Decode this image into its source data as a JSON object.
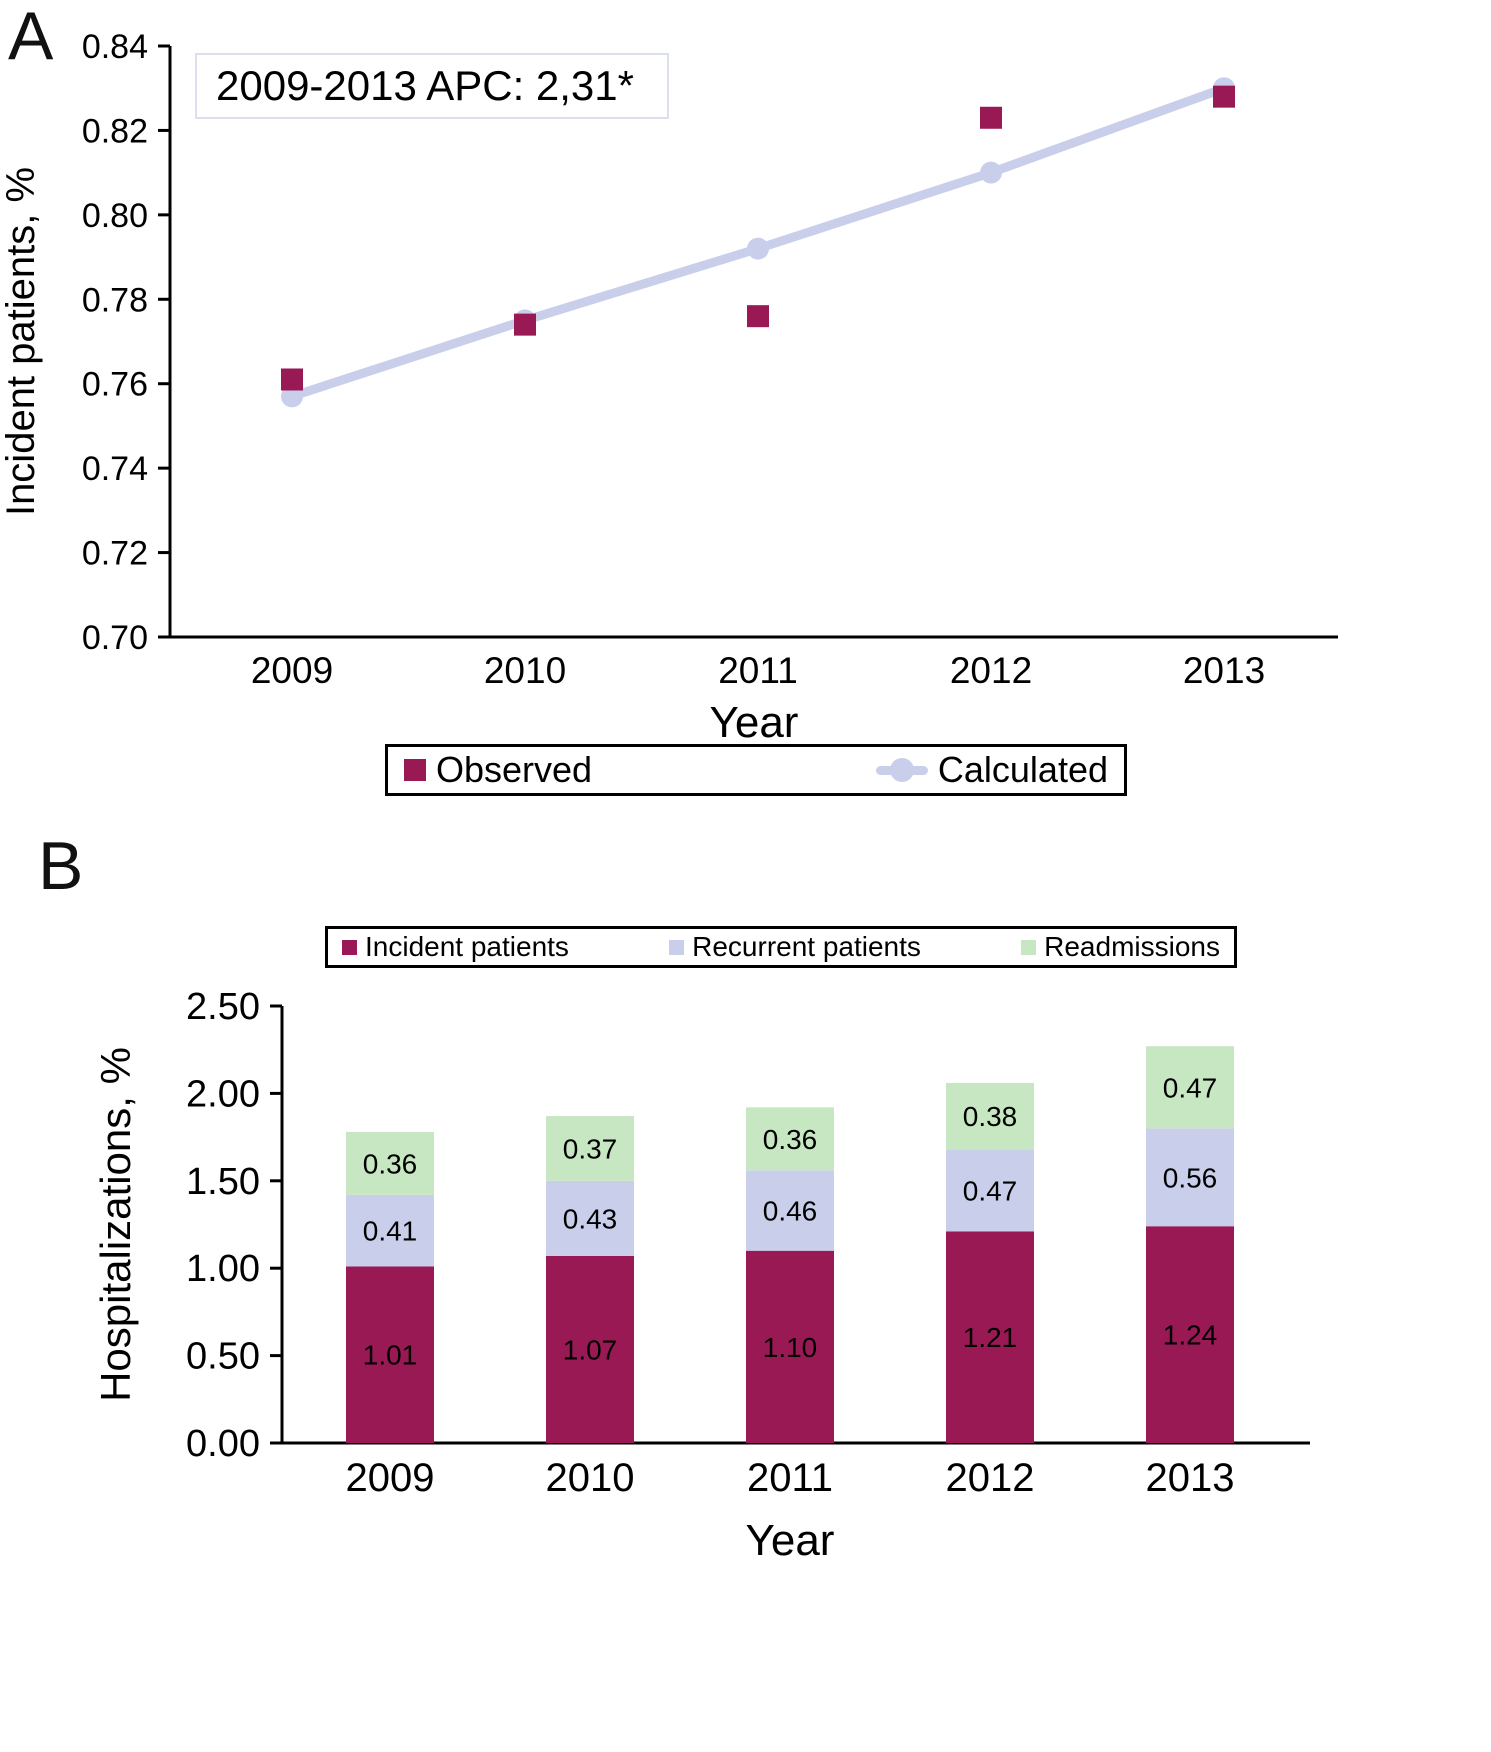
{
  "colors": {
    "observed": "#991955",
    "calculated": "#C9CFEB",
    "incident": "#991955",
    "recurrent": "#C9CFEB",
    "readmissions": "#C7E6C2",
    "annotation_border": "#DCE0EE",
    "axis": "#000000"
  },
  "panel_a": {
    "label": "A",
    "annotation": "2009-2013 APC: 2,31*",
    "legend": [
      {
        "label": "Observed",
        "marker": "square"
      },
      {
        "label": "Calculated",
        "marker": "circle-line"
      }
    ]
  },
  "panel_b": {
    "label": "B",
    "legend": [
      {
        "label": "Incident patients"
      },
      {
        "label": "Recurrent patients"
      },
      {
        "label": "Readmissions"
      }
    ]
  },
  "chart_data": [
    {
      "type": "line",
      "title": "",
      "x": [
        2009,
        2010,
        2011,
        2012,
        2013
      ],
      "series": [
        {
          "name": "Observed",
          "type": "scatter",
          "marker": "square",
          "values": [
            0.761,
            0.774,
            0.776,
            0.823,
            0.828
          ]
        },
        {
          "name": "Calculated",
          "type": "line",
          "marker": "circle",
          "values": [
            0.757,
            0.775,
            0.792,
            0.81,
            0.83
          ]
        }
      ],
      "xlabel": "Year",
      "ylabel": "Incident patients, %",
      "ylim": [
        0.7,
        0.84
      ],
      "yticks": [
        0.7,
        0.72,
        0.74,
        0.76,
        0.78,
        0.8,
        0.82,
        0.84
      ],
      "annotation": "2009-2013 APC: 2,31*",
      "legend_position": "bottom",
      "grid": false
    },
    {
      "type": "bar",
      "stacked": true,
      "categories": [
        "2009",
        "2010",
        "2011",
        "2012",
        "2013"
      ],
      "series": [
        {
          "name": "Incident patients",
          "values": [
            1.01,
            1.07,
            1.1,
            1.21,
            1.24
          ]
        },
        {
          "name": "Recurrent patients",
          "values": [
            0.41,
            0.43,
            0.46,
            0.47,
            0.56
          ]
        },
        {
          "name": "Readmissions",
          "values": [
            0.36,
            0.37,
            0.36,
            0.38,
            0.47
          ]
        }
      ],
      "xlabel": "Year",
      "ylabel": "Hospitalizations, %",
      "ylim": [
        0.0,
        2.5
      ],
      "yticks": [
        0.0,
        0.5,
        1.0,
        1.5,
        2.0,
        2.5
      ],
      "legend_position": "top",
      "grid": false
    }
  ]
}
